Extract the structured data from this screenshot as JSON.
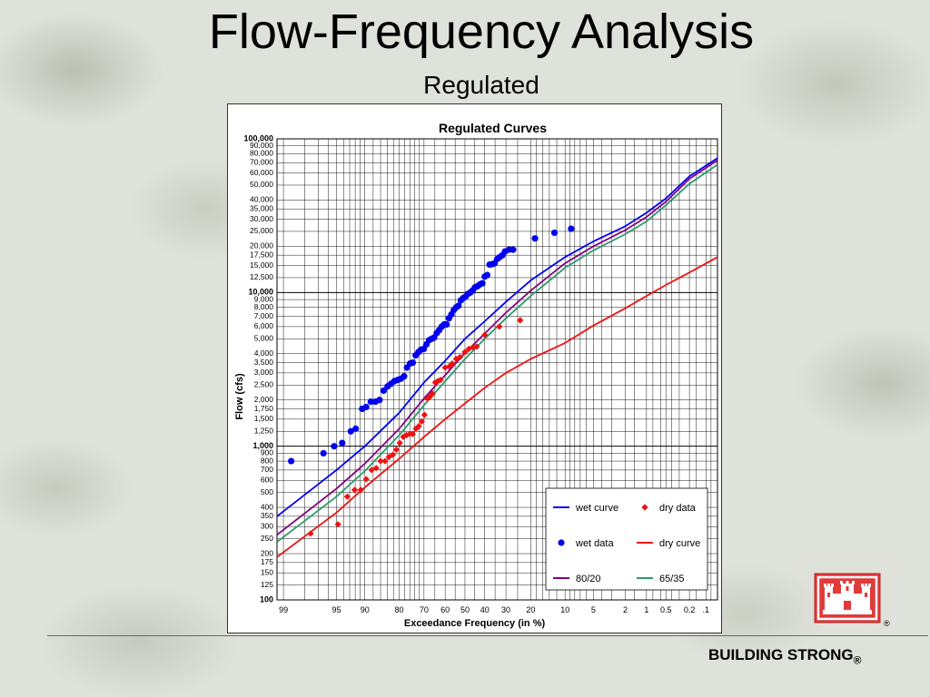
{
  "slide": {
    "title": "Flow-Frequency Analysis",
    "subtitle": "Regulated",
    "footer": "BUILDING STRONG",
    "footer_mark": "®",
    "logo_mark": "®"
  },
  "colors": {
    "wet": "#0000ee",
    "dry": "#ee1111",
    "p80_20": "#800080",
    "p65_35": "#2e9a6a",
    "logo_red": "#e03a3a"
  },
  "chart_data": {
    "type": "scatter",
    "title": "Regulated Curves",
    "xlabel": "Exceedance Frequency (in %)",
    "ylabel": "Flow (cfs)",
    "x_scale": "normal-probability (reversed)",
    "y_scale": "log",
    "ylim": [
      100,
      100000
    ],
    "xlim": [
      99.2,
      0.06
    ],
    "grid": true,
    "legend_position": "bottom-right",
    "x_ticks": [
      {
        "v": 99,
        "label": "99"
      },
      {
        "v": 95,
        "label": "95"
      },
      {
        "v": 90,
        "label": "90"
      },
      {
        "v": 80,
        "label": "80"
      },
      {
        "v": 70,
        "label": "70"
      },
      {
        "v": 60,
        "label": "60"
      },
      {
        "v": 50,
        "label": "50"
      },
      {
        "v": 40,
        "label": "40"
      },
      {
        "v": 30,
        "label": "30"
      },
      {
        "v": 20,
        "label": "20"
      },
      {
        "v": 10,
        "label": "10"
      },
      {
        "v": 5,
        "label": "5"
      },
      {
        "v": 2,
        "label": "2"
      },
      {
        "v": 1,
        "label": "1"
      },
      {
        "v": 0.5,
        "label": "0.5"
      },
      {
        "v": 0.2,
        "label": "0.2"
      },
      {
        "v": 0.1,
        "label": ".1"
      }
    ],
    "y_ticks": [
      {
        "v": 100,
        "label": "100",
        "bold": true
      },
      {
        "v": 125,
        "label": "125"
      },
      {
        "v": 150,
        "label": "150"
      },
      {
        "v": 175,
        "label": "175"
      },
      {
        "v": 200,
        "label": "200"
      },
      {
        "v": 250,
        "label": "250"
      },
      {
        "v": 300,
        "label": "300"
      },
      {
        "v": 350,
        "label": "350"
      },
      {
        "v": 400,
        "label": "400"
      },
      {
        "v": 500,
        "label": "500"
      },
      {
        "v": 600,
        "label": "600"
      },
      {
        "v": 700,
        "label": "700"
      },
      {
        "v": 800,
        "label": "800"
      },
      {
        "v": 900,
        "label": "900"
      },
      {
        "v": 1000,
        "label": "1,000",
        "bold": true
      },
      {
        "v": 1250,
        "label": "1,250"
      },
      {
        "v": 1500,
        "label": "1,500"
      },
      {
        "v": 1750,
        "label": "1,750"
      },
      {
        "v": 2000,
        "label": "2,000"
      },
      {
        "v": 2500,
        "label": "2,500"
      },
      {
        "v": 3000,
        "label": "3,000"
      },
      {
        "v": 3500,
        "label": "3,500"
      },
      {
        "v": 4000,
        "label": "4,000"
      },
      {
        "v": 5000,
        "label": "5,000"
      },
      {
        "v": 6000,
        "label": "6,000"
      },
      {
        "v": 7000,
        "label": "7,000"
      },
      {
        "v": 8000,
        "label": "8,000"
      },
      {
        "v": 9000,
        "label": "9,000"
      },
      {
        "v": 10000,
        "label": "10,000",
        "bold": true
      },
      {
        "v": 12500,
        "label": "12,500"
      },
      {
        "v": 15000,
        "label": "15,000"
      },
      {
        "v": 17500,
        "label": "17,500"
      },
      {
        "v": 20000,
        "label": "20,000"
      },
      {
        "v": 25000,
        "label": "25,000"
      },
      {
        "v": 30000,
        "label": "30,000"
      },
      {
        "v": 35000,
        "label": "35,000"
      },
      {
        "v": 40000,
        "label": "40,000"
      },
      {
        "v": 50000,
        "label": "50,000"
      },
      {
        "v": 60000,
        "label": "60,000"
      },
      {
        "v": 70000,
        "label": "70,000"
      },
      {
        "v": 80000,
        "label": "80,000"
      },
      {
        "v": 90000,
        "label": "90,000"
      },
      {
        "v": 100000,
        "label": "100,000",
        "bold": true
      }
    ],
    "series": [
      {
        "name": "wet curve",
        "kind": "line",
        "color": "#0000ee",
        "points": [
          [
            99.2,
            350
          ],
          [
            95,
            700
          ],
          [
            90,
            1000
          ],
          [
            80,
            1650
          ],
          [
            70,
            2600
          ],
          [
            60,
            3600
          ],
          [
            50,
            5000
          ],
          [
            40,
            6500
          ],
          [
            30,
            8700
          ],
          [
            20,
            12000
          ],
          [
            10,
            17000
          ],
          [
            5,
            21500
          ],
          [
            2,
            27000
          ],
          [
            1,
            33000
          ],
          [
            0.5,
            41000
          ],
          [
            0.2,
            57000
          ],
          [
            0.06,
            75000
          ]
        ]
      },
      {
        "name": "80/20",
        "kind": "line",
        "color": "#800080",
        "points": [
          [
            99.2,
            265
          ],
          [
            95,
            530
          ],
          [
            90,
            770
          ],
          [
            80,
            1300
          ],
          [
            70,
            2050
          ],
          [
            60,
            2900
          ],
          [
            50,
            4050
          ],
          [
            40,
            5400
          ],
          [
            30,
            7400
          ],
          [
            20,
            10300
          ],
          [
            10,
            15500
          ],
          [
            5,
            20000
          ],
          [
            2,
            25500
          ],
          [
            1,
            31000
          ],
          [
            0.5,
            39000
          ],
          [
            0.2,
            55000
          ],
          [
            0.06,
            72500
          ]
        ]
      },
      {
        "name": "65/35",
        "kind": "line",
        "color": "#2e9a6a",
        "points": [
          [
            99.2,
            238
          ],
          [
            95,
            470
          ],
          [
            90,
            690
          ],
          [
            80,
            1180
          ],
          [
            70,
            1850
          ],
          [
            60,
            2650
          ],
          [
            50,
            3700
          ],
          [
            40,
            5000
          ],
          [
            30,
            6800
          ],
          [
            20,
            9500
          ],
          [
            10,
            14500
          ],
          [
            5,
            18800
          ],
          [
            2,
            24000
          ],
          [
            1,
            29000
          ],
          [
            0.5,
            37000
          ],
          [
            0.2,
            51000
          ],
          [
            0.06,
            68000
          ]
        ]
      },
      {
        "name": "dry curve",
        "kind": "line",
        "color": "#ee1111",
        "points": [
          [
            99.2,
            190
          ],
          [
            95,
            370
          ],
          [
            90,
            540
          ],
          [
            80,
            830
          ],
          [
            70,
            1150
          ],
          [
            60,
            1500
          ],
          [
            50,
            1900
          ],
          [
            40,
            2400
          ],
          [
            30,
            3000
          ],
          [
            20,
            3700
          ],
          [
            10,
            4700
          ],
          [
            5,
            6100
          ],
          [
            2,
            7900
          ],
          [
            1,
            9500
          ],
          [
            0.5,
            11200
          ],
          [
            0.2,
            13500
          ],
          [
            0.06,
            17000
          ]
        ]
      },
      {
        "name": "wet data",
        "kind": "circle",
        "color": "#0000ee",
        "points": [
          [
            98.7,
            800
          ],
          [
            96.5,
            900
          ],
          [
            95.3,
            1000
          ],
          [
            94.2,
            1050
          ],
          [
            92.8,
            1250
          ],
          [
            91.9,
            1300
          ],
          [
            90.6,
            1750
          ],
          [
            89.7,
            1800
          ],
          [
            88.6,
            1950
          ],
          [
            87.4,
            1950
          ],
          [
            86.3,
            2000
          ],
          [
            85.1,
            2300
          ],
          [
            83.9,
            2450
          ],
          [
            82.8,
            2550
          ],
          [
            81.7,
            2650
          ],
          [
            80.5,
            2700
          ],
          [
            79.4,
            2750
          ],
          [
            78.2,
            2850
          ],
          [
            77.1,
            3250
          ],
          [
            75.9,
            3450
          ],
          [
            74.8,
            3500
          ],
          [
            73.6,
            3900
          ],
          [
            72.4,
            4100
          ],
          [
            71.3,
            4250
          ],
          [
            70.1,
            4300
          ],
          [
            68.9,
            4600
          ],
          [
            67.7,
            4900
          ],
          [
            66.5,
            5000
          ],
          [
            65.3,
            5100
          ],
          [
            64.1,
            5450
          ],
          [
            62.9,
            5700
          ],
          [
            61.7,
            6000
          ],
          [
            60.5,
            6200
          ],
          [
            59.3,
            6200
          ],
          [
            58.1,
            6800
          ],
          [
            56.9,
            7200
          ],
          [
            55.7,
            7700
          ],
          [
            54.5,
            8000
          ],
          [
            53.3,
            8200
          ],
          [
            52.1,
            8900
          ],
          [
            50.9,
            9200
          ],
          [
            49.7,
            9400
          ],
          [
            48.5,
            9800
          ],
          [
            47.3,
            10000
          ],
          [
            46.1,
            10300
          ],
          [
            44.9,
            10800
          ],
          [
            43.6,
            11000
          ],
          [
            42.4,
            11300
          ],
          [
            41.2,
            11500
          ],
          [
            40.0,
            12700
          ],
          [
            38.8,
            13000
          ],
          [
            37.6,
            15200
          ],
          [
            36.4,
            15300
          ],
          [
            35.2,
            15500
          ],
          [
            34.0,
            16500
          ],
          [
            32.8,
            17000
          ],
          [
            31.6,
            17500
          ],
          [
            30.4,
            18500
          ],
          [
            28.6,
            19000
          ],
          [
            26.9,
            19000
          ],
          [
            18.5,
            22500
          ],
          [
            12.6,
            24500
          ],
          [
            8.7,
            26000
          ]
        ]
      },
      {
        "name": "dry data",
        "kind": "diamond",
        "color": "#ee1111",
        "points": [
          [
            97.6,
            270
          ],
          [
            94.8,
            310
          ],
          [
            93.4,
            470
          ],
          [
            92.1,
            520
          ],
          [
            90.9,
            520
          ],
          [
            89.7,
            610
          ],
          [
            88.4,
            700
          ],
          [
            87.2,
            720
          ],
          [
            86.0,
            800
          ],
          [
            84.7,
            800
          ],
          [
            83.5,
            850
          ],
          [
            82.2,
            880
          ],
          [
            81.0,
            950
          ],
          [
            79.8,
            1050
          ],
          [
            78.5,
            1150
          ],
          [
            77.3,
            1180
          ],
          [
            76.0,
            1200
          ],
          [
            74.8,
            1200
          ],
          [
            73.5,
            1300
          ],
          [
            72.3,
            1350
          ],
          [
            71.0,
            1450
          ],
          [
            69.8,
            1600
          ],
          [
            68.5,
            2050
          ],
          [
            67.3,
            2100
          ],
          [
            66.1,
            2200
          ],
          [
            64.8,
            2600
          ],
          [
            63.6,
            2650
          ],
          [
            62.3,
            2700
          ],
          [
            60.0,
            3250
          ],
          [
            58.0,
            3300
          ],
          [
            56.5,
            3450
          ],
          [
            54.5,
            3700
          ],
          [
            52.5,
            3800
          ],
          [
            50.0,
            4100
          ],
          [
            48.0,
            4300
          ],
          [
            46.0,
            4400
          ],
          [
            44.0,
            4450
          ],
          [
            40.0,
            5300
          ],
          [
            33.0,
            6000
          ],
          [
            24.0,
            6600
          ]
        ]
      }
    ]
  }
}
